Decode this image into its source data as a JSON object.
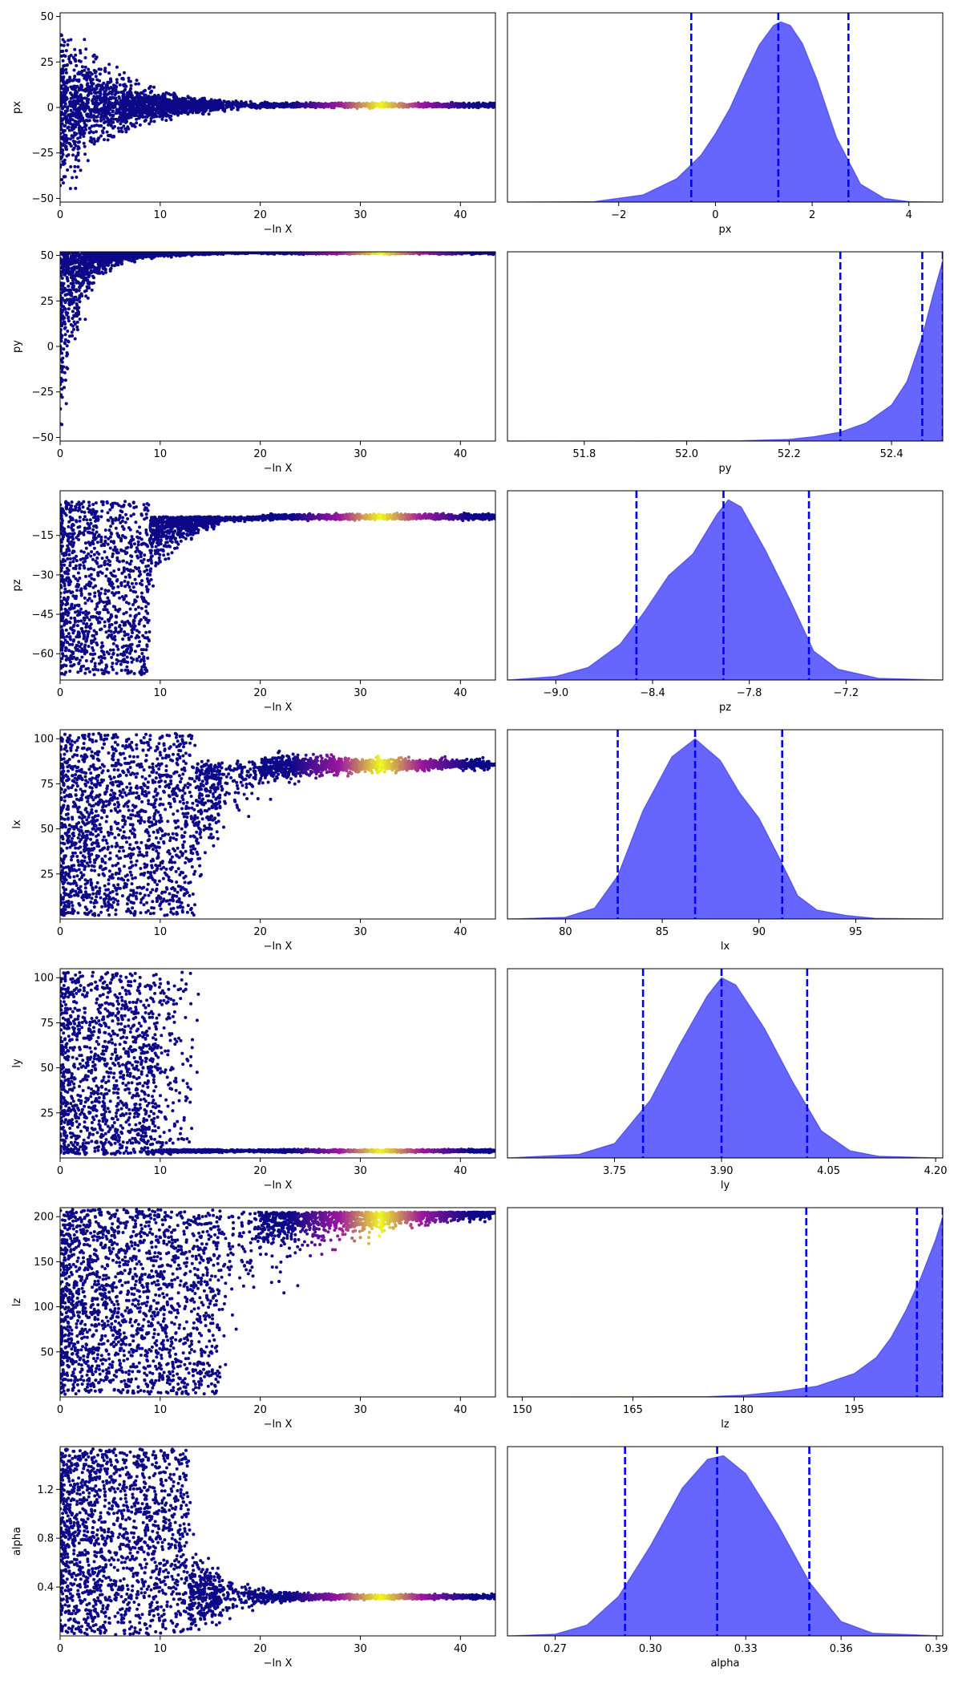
{
  "figure": {
    "colors": {
      "trace_low": "#0d0887",
      "trace_mid": "#9c179e",
      "trace_high": "#f0f921",
      "posterior_fill": "#6464ff",
      "posterior_line": "#1f1fd9",
      "quantile_line": "#0000ff"
    }
  },
  "chart_data": [
    {
      "type": "scatter",
      "name": "px",
      "xlabel": "−ln X",
      "ylabel": "px",
      "xlim": [
        0,
        43.5
      ],
      "ylim": [
        -52,
        52
      ],
      "xticks": [
        "0",
        "10",
        "20",
        "30",
        "40"
      ],
      "xtick_values": [
        0,
        10,
        20,
        30,
        40
      ],
      "yticks": [
        "50",
        "25",
        "0",
        "−25",
        "−50"
      ],
      "ytick_values": [
        50,
        25,
        0,
        -25,
        -50
      ],
      "trace": {
        "kind": "converge",
        "converge_value": 1.2,
        "start_spread": 52,
        "decay": 5.5,
        "bright_center": 32
      }
    },
    {
      "type": "area",
      "name": "px",
      "xlabel": "px",
      "xlim": [
        -4.3,
        4.7
      ],
      "xticks": [
        "−2",
        "0",
        "2",
        "4"
      ],
      "xtick_values": [
        -2,
        0,
        2,
        4
      ],
      "quantiles": [
        -0.5,
        1.3,
        2.75
      ],
      "density": {
        "x": [
          -4.3,
          -2.5,
          -1.5,
          -0.8,
          -0.3,
          0.0,
          0.3,
          0.6,
          0.9,
          1.2,
          1.35,
          1.55,
          1.8,
          2.1,
          2.5,
          3.0,
          3.5,
          4.0,
          4.7
        ],
        "y": [
          0,
          0.003,
          0.04,
          0.13,
          0.26,
          0.38,
          0.52,
          0.7,
          0.87,
          0.98,
          1.0,
          0.98,
          0.88,
          0.68,
          0.36,
          0.1,
          0.02,
          0.003,
          0
        ]
      }
    },
    {
      "type": "scatter",
      "name": "py",
      "xlabel": "−ln X",
      "ylabel": "py",
      "xlim": [
        0,
        43.5
      ],
      "ylim": [
        -52,
        52
      ],
      "xticks": [
        "0",
        "10",
        "20",
        "30",
        "40"
      ],
      "xtick_values": [
        0,
        10,
        20,
        30,
        40
      ],
      "yticks": [
        "50",
        "25",
        "0",
        "−25",
        "−50"
      ],
      "ytick_values": [
        50,
        25,
        0,
        -25,
        -50
      ],
      "trace": {
        "kind": "top",
        "converge_value": 51.8,
        "start_spread": 104,
        "decay": 1.6,
        "bright_center": 32
      }
    },
    {
      "type": "area",
      "name": "py",
      "xlabel": "py",
      "xlim": [
        51.65,
        52.5
      ],
      "xticks": [
        "51.8",
        "52.0",
        "52.2",
        "52.4"
      ],
      "xtick_values": [
        51.8,
        52.0,
        52.2,
        52.4
      ],
      "quantiles": [
        52.3,
        52.46,
        52.5
      ],
      "density": {
        "x": [
          51.65,
          52.1,
          52.2,
          52.25,
          52.3,
          52.35,
          52.4,
          52.43,
          52.46,
          52.48,
          52.5
        ],
        "y": [
          0,
          0.002,
          0.01,
          0.025,
          0.05,
          0.1,
          0.2,
          0.33,
          0.58,
          0.8,
          1.0
        ]
      }
    },
    {
      "type": "scatter",
      "name": "pz",
      "xlabel": "−ln X",
      "ylabel": "pz",
      "xlim": [
        0,
        43.5
      ],
      "ylim": [
        -70,
        2
      ],
      "xticks": [
        "0",
        "10",
        "20",
        "30",
        "40"
      ],
      "xtick_values": [
        0,
        10,
        20,
        30,
        40
      ],
      "yticks": [
        "−15",
        "−30",
        "−45",
        "−60"
      ],
      "ytick_values": [
        -15,
        -30,
        -45,
        -60
      ],
      "trace": {
        "kind": "cliff_top",
        "converge_value": -7.9,
        "cliff_at": 9,
        "bright_center": 32
      }
    },
    {
      "type": "area",
      "name": "pz",
      "xlabel": "pz",
      "xlim": [
        -9.3,
        -6.6
      ],
      "xticks": [
        "−9.0",
        "−8.4",
        "−7.8",
        "−7.2"
      ],
      "xtick_values": [
        -9.0,
        -8.4,
        -7.8,
        -7.2
      ],
      "quantiles": [
        -8.5,
        -7.96,
        -7.43
      ],
      "density": {
        "x": [
          -9.3,
          -9.0,
          -8.8,
          -8.6,
          -8.45,
          -8.3,
          -8.15,
          -8.0,
          -7.93,
          -7.85,
          -7.7,
          -7.55,
          -7.4,
          -7.25,
          -7.0,
          -6.6
        ],
        "y": [
          0,
          0.02,
          0.07,
          0.2,
          0.38,
          0.58,
          0.7,
          0.92,
          1.0,
          0.96,
          0.72,
          0.45,
          0.16,
          0.06,
          0.01,
          0
        ]
      }
    },
    {
      "type": "scatter",
      "name": "lx",
      "xlabel": "−ln X",
      "ylabel": "lx",
      "xlim": [
        0,
        43.5
      ],
      "ylim": [
        0,
        105
      ],
      "xticks": [
        "0",
        "10",
        "20",
        "30",
        "40"
      ],
      "xtick_values": [
        0,
        10,
        20,
        30,
        40
      ],
      "yticks": [
        "100",
        "75",
        "50",
        "25"
      ],
      "ytick_values": [
        100,
        75,
        50,
        25
      ],
      "trace": {
        "kind": "cliff_bottom",
        "converge_value": 86.6,
        "cliff_at": 13.5,
        "bright_center": 32
      }
    },
    {
      "type": "area",
      "name": "lx",
      "xlabel": "lx",
      "xlim": [
        77,
        99.5
      ],
      "xticks": [
        "80",
        "85",
        "90",
        "95"
      ],
      "xtick_values": [
        80,
        85,
        90,
        95
      ],
      "quantiles": [
        82.7,
        86.7,
        91.2
      ],
      "density": {
        "x": [
          77,
          80,
          81.5,
          82.7,
          84,
          85.5,
          86.7,
          88,
          89,
          90,
          91,
          92,
          93,
          94.5,
          96,
          99.5
        ],
        "y": [
          0,
          0.01,
          0.06,
          0.24,
          0.6,
          0.9,
          1.0,
          0.88,
          0.7,
          0.56,
          0.35,
          0.13,
          0.05,
          0.02,
          0.004,
          0
        ]
      }
    },
    {
      "type": "scatter",
      "name": "ly",
      "xlabel": "−ln X",
      "ylabel": "ly",
      "xlim": [
        0,
        43.5
      ],
      "ylim": [
        0,
        105
      ],
      "xticks": [
        "0",
        "10",
        "20",
        "30",
        "40"
      ],
      "xtick_values": [
        0,
        10,
        20,
        30,
        40
      ],
      "yticks": [
        "100",
        "75",
        "50",
        "25"
      ],
      "ytick_values": [
        100,
        75,
        50,
        25
      ],
      "trace": {
        "kind": "cliff_low",
        "converge_value": 3.9,
        "cliff_at": 14,
        "bright_center": 32
      }
    },
    {
      "type": "area",
      "name": "ly",
      "xlabel": "ly",
      "xlim": [
        3.6,
        4.21
      ],
      "xticks": [
        "3.75",
        "3.90",
        "4.05",
        "4.20"
      ],
      "xtick_values": [
        3.75,
        3.9,
        4.05,
        4.2
      ],
      "quantiles": [
        3.79,
        3.9,
        4.02
      ],
      "density": {
        "x": [
          3.6,
          3.7,
          3.75,
          3.8,
          3.84,
          3.88,
          3.9,
          3.92,
          3.96,
          4.0,
          4.04,
          4.08,
          4.12,
          4.21
        ],
        "y": [
          0,
          0.02,
          0.08,
          0.32,
          0.62,
          0.9,
          1.0,
          0.96,
          0.72,
          0.42,
          0.15,
          0.04,
          0.01,
          0
        ]
      }
    },
    {
      "type": "scatter",
      "name": "lz",
      "xlabel": "−ln X",
      "ylabel": "lz",
      "xlim": [
        0,
        43.5
      ],
      "ylim": [
        0,
        210
      ],
      "xticks": [
        "0",
        "10",
        "20",
        "30",
        "40"
      ],
      "xtick_values": [
        0,
        10,
        20,
        30,
        40
      ],
      "yticks": [
        "200",
        "150",
        "100",
        "50"
      ],
      "ytick_values": [
        200,
        150,
        100,
        50
      ],
      "trace": {
        "kind": "lz",
        "converge_value": 205,
        "cliff_at": 16,
        "bright_center": 32
      }
    },
    {
      "type": "area",
      "name": "lz",
      "xlabel": "lz",
      "xlim": [
        148,
        207
      ],
      "xticks": [
        "150",
        "165",
        "180",
        "195"
      ],
      "xtick_values": [
        150,
        165,
        180,
        195
      ],
      "quantiles": [
        188.5,
        203.5,
        207
      ],
      "density": {
        "x": [
          148,
          175,
          180,
          185,
          190,
          195,
          198,
          200,
          202,
          204,
          206,
          207
        ],
        "y": [
          0,
          0.002,
          0.01,
          0.03,
          0.06,
          0.13,
          0.22,
          0.33,
          0.48,
          0.66,
          0.87,
          1.0
        ]
      }
    },
    {
      "type": "scatter",
      "name": "alpha",
      "xlabel": "−ln X",
      "ylabel": "alpha",
      "xlim": [
        0,
        43.5
      ],
      "ylim": [
        0.0,
        1.55
      ],
      "xticks": [
        "0",
        "10",
        "20",
        "30",
        "40"
      ],
      "xtick_values": [
        0,
        10,
        20,
        30,
        40
      ],
      "yticks": [
        "1.2",
        "0.8",
        "0.4"
      ],
      "ytick_values": [
        1.2,
        0.8,
        0.4
      ],
      "trace": {
        "kind": "alpha",
        "converge_value": 0.32,
        "cliff_at": 13,
        "bright_center": 32
      }
    },
    {
      "type": "area",
      "name": "alpha",
      "xlabel": "alpha",
      "xlim": [
        0.255,
        0.392
      ],
      "xticks": [
        "0.27",
        "0.30",
        "0.33",
        "0.36",
        "0.39"
      ],
      "xtick_values": [
        0.27,
        0.3,
        0.33,
        0.36,
        0.39
      ],
      "quantiles": [
        0.292,
        0.321,
        0.35
      ],
      "density": {
        "x": [
          0.255,
          0.27,
          0.28,
          0.29,
          0.3,
          0.31,
          0.318,
          0.323,
          0.33,
          0.34,
          0.35,
          0.36,
          0.37,
          0.392
        ],
        "y": [
          0,
          0.01,
          0.06,
          0.22,
          0.5,
          0.82,
          0.98,
          1.0,
          0.9,
          0.62,
          0.3,
          0.08,
          0.015,
          0
        ]
      }
    }
  ]
}
